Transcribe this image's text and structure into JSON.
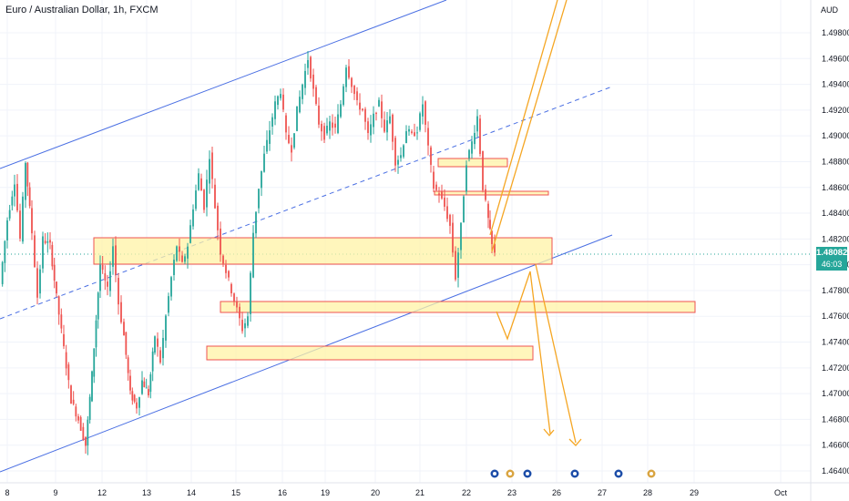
{
  "header": {
    "title": "Euro / Australian Dollar, 1h, FXCM"
  },
  "price_axis": {
    "currency": "AUD",
    "last_price": "1.48082",
    "countdown": "46:03"
  },
  "colors": {
    "bull": "#26a69a",
    "bear": "#ef5350",
    "channel": "#4a6fe3",
    "zone_fill": "#fff3a6",
    "zone_border": "#ef5350",
    "projection": "#f5a623",
    "grid": "#f0f3fa"
  },
  "chart_data": {
    "type": "candlestick",
    "symbol": "EURAUD",
    "timeframe": "1h",
    "ylim": [
      1.4635,
      1.4995
    ],
    "y_ticks": [
      "1.46400",
      "1.46600",
      "1.46800",
      "1.47000",
      "1.47200",
      "1.47400",
      "1.47600",
      "1.47800",
      "1.48000",
      "1.48200",
      "1.48400",
      "1.48600",
      "1.48800",
      "1.49000",
      "1.49200",
      "1.49400",
      "1.49600",
      "1.49800"
    ],
    "x_ticks": [
      "8",
      "9",
      "12",
      "13",
      "14",
      "15",
      "16",
      "19",
      "20",
      "21",
      "22",
      "23",
      "26",
      "27",
      "28",
      "29",
      "Oct"
    ],
    "last_price": 1.48082,
    "channel": {
      "lower": [
        [
          "8",
          1.464
        ],
        [
          "22",
          1.48
        ]
      ],
      "upper": [
        [
          "8",
          1.4888
        ],
        [
          "16",
          1.4975
        ]
      ],
      "midline": [
        [
          "8",
          1.4765
        ],
        [
          "22",
          1.494
        ]
      ]
    },
    "zones": [
      {
        "low": 1.4804,
        "high": 1.4821
      },
      {
        "low": 1.4766,
        "high": 1.4772
      },
      {
        "low": 1.473,
        "high": 1.4736
      },
      {
        "low": 1.4878,
        "high": 1.4882
      },
      {
        "low": 1.4855,
        "high": 1.4857
      }
    ],
    "projections": [
      {
        "description": "bullish channel breakout path",
        "from": 1.4825,
        "to": 1.4995
      },
      {
        "description": "bearish breakdown path",
        "from": 1.4806,
        "to": 1.468
      }
    ],
    "event_markers": 6
  }
}
